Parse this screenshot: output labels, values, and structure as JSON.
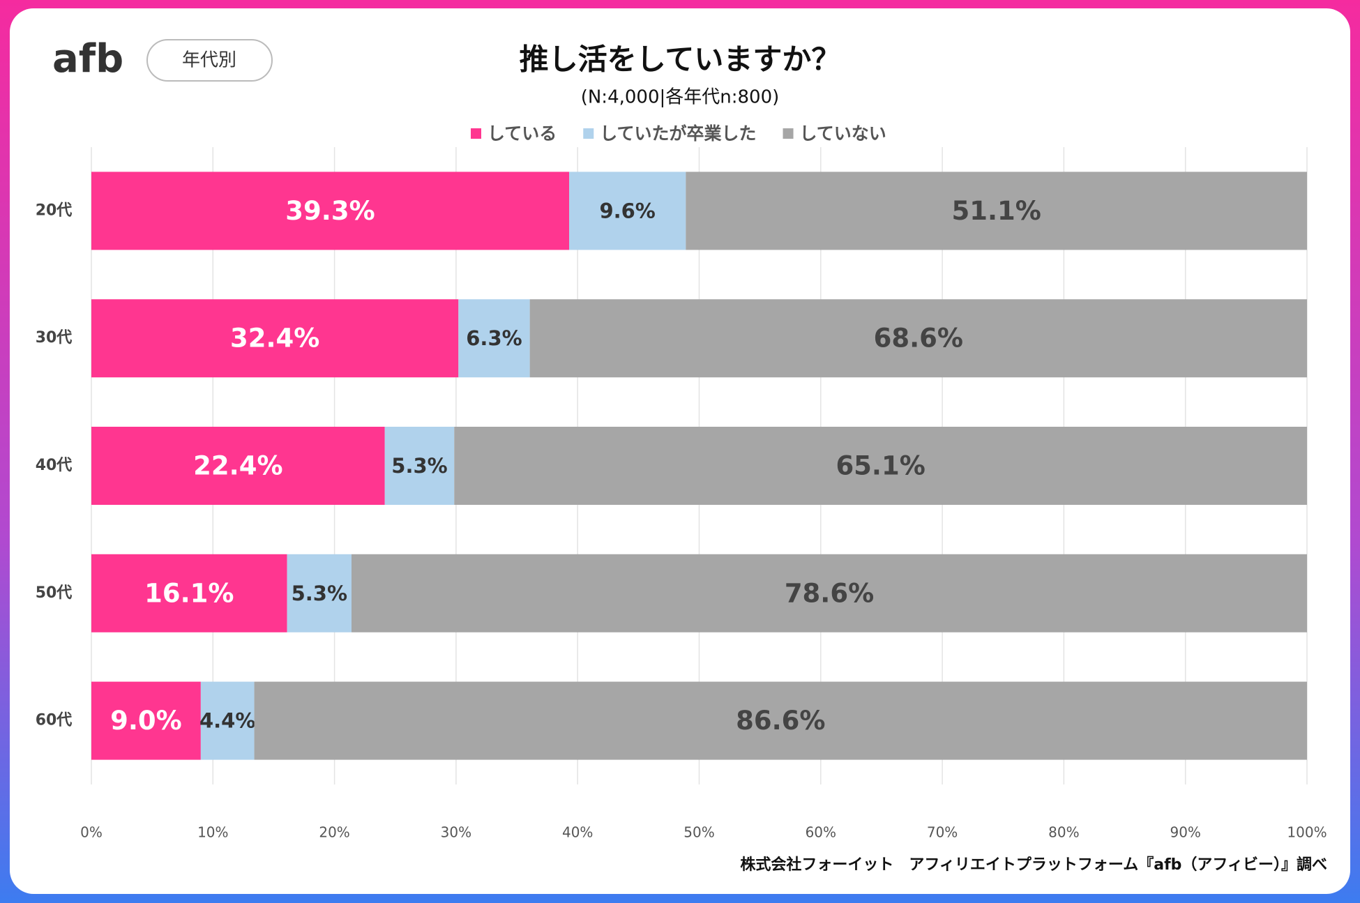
{
  "brand": "afb",
  "tag": "年代別",
  "chart_data": {
    "type": "bar",
    "orientation": "horizontal",
    "stacked": "percent",
    "title": "推し活をしていますか？",
    "subtitle": "(N:4,000|各年代n:800)",
    "categories": [
      "20代",
      "30代",
      "40代",
      "50代",
      "60代"
    ],
    "series": [
      {
        "name": "している",
        "color": "#ff3690",
        "label_color": "#ffffff",
        "values": [
          39.3,
          32.4,
          22.4,
          16.1,
          9.0
        ],
        "value_labels": [
          "39.3%",
          "32.4%",
          "22.4%",
          "16.1%",
          "9.0%"
        ]
      },
      {
        "name": "していたが卒業した",
        "color": "#b0d2ec",
        "label_color": "#333333",
        "values": [
          9.6,
          6.3,
          5.3,
          5.3,
          4.4
        ],
        "value_labels": [
          "9.6%",
          "6.3%",
          "5.3%",
          "5.3%",
          "4.4%"
        ]
      },
      {
        "name": "していない",
        "color": "#a6a6a6",
        "label_color": "#444444",
        "values": [
          51.1,
          68.6,
          65.1,
          78.6,
          86.6
        ],
        "value_labels": [
          "51.1%",
          "68.6%",
          "65.1%",
          "78.6%",
          "86.6%"
        ]
      }
    ],
    "xlim": [
      0,
      100
    ],
    "xticks": [
      {
        "value": 0,
        "label": "0%"
      },
      {
        "value": 10,
        "label": "10%"
      },
      {
        "value": 20,
        "label": "20%"
      },
      {
        "value": 30,
        "label": "30%"
      },
      {
        "value": 40,
        "label": "40%"
      },
      {
        "value": 50,
        "label": "50%"
      },
      {
        "value": 60,
        "label": "60%"
      },
      {
        "value": 70,
        "label": "70%"
      },
      {
        "value": 80,
        "label": "80%"
      },
      {
        "value": 90,
        "label": "90%"
      },
      {
        "value": 100,
        "label": "100%"
      }
    ],
    "grid": true,
    "legend": "top",
    "source": "株式会社フォーイット　アフィリエイトプラットフォーム『afb（アフィビー）』調べ"
  }
}
